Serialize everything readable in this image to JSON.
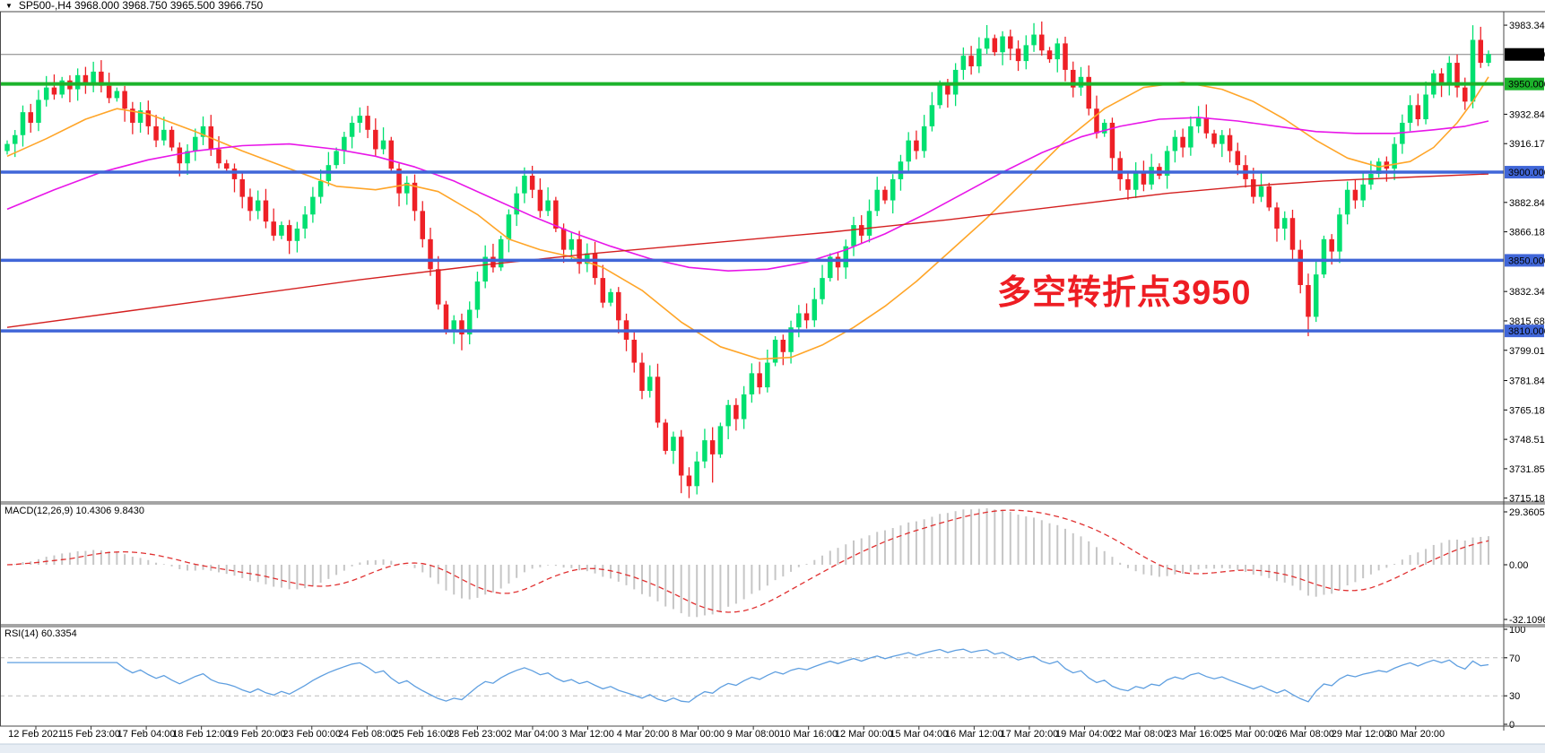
{
  "window_title": "SP500-,H4  3968.000 3968.750 3965.500 3966.750",
  "icons": {
    "symbol_dropdown": "▼"
  },
  "colors": {
    "bull": "#00e070",
    "bear": "#ee2026",
    "wick_bull": "#00c862",
    "wick_bear": "#d81a20",
    "ma_fast": "#ffa528",
    "ma_medium": "#e816e8",
    "ma_slow": "#d42020",
    "level_green": "#1cb32b",
    "level_blue": "#4066d8",
    "current_price_line": "#808080",
    "current_badge_bg": "#000000",
    "badge_text": "#ffffff",
    "macd_histogram": "#c6c6c6",
    "macd_signal": "#e03030",
    "rsi_line": "#5f9fe0",
    "rsi_level_dash": "#bbbbbb",
    "border": "#4a4a4a",
    "bottom_strip": "#e7edf4",
    "annotation_red": "#ee1d23"
  },
  "chart_data": {
    "type": "candlestick",
    "symbol": "SP500-",
    "timeframe": "H4",
    "ohlc_display": {
      "open": "3968.000",
      "high": "3968.750",
      "low": "3965.500",
      "close": "3966.750"
    },
    "y_range": [
      3713,
      3991
    ],
    "price_axis_ticks": [
      {
        "label": "3983.340",
        "value": 3983.34
      },
      {
        "label": "3932.840",
        "value": 3932.84
      },
      {
        "label": "3916.175",
        "value": 3916.175
      },
      {
        "label": "3882.845",
        "value": 3882.845
      },
      {
        "label": "3866.180",
        "value": 3866.18
      },
      {
        "label": "3832.345",
        "value": 3832.345
      },
      {
        "label": "3815.680",
        "value": 3815.68
      },
      {
        "label": "3799.015",
        "value": 3799.015
      },
      {
        "label": "3781.845",
        "value": 3781.845
      },
      {
        "label": "3765.180",
        "value": 3765.18
      },
      {
        "label": "3748.515",
        "value": 3748.515
      },
      {
        "label": "3731.850",
        "value": 3731.85
      },
      {
        "label": "3715.185",
        "value": 3715.185
      }
    ],
    "current_price": {
      "label": "3966.750",
      "value": 3966.75
    },
    "levels": [
      {
        "label": "3950.000",
        "value": 3950.0,
        "color_key": "level_green",
        "width": 4
      },
      {
        "label": "3900.000",
        "value": 3900.0,
        "color_key": "level_blue",
        "width": 3.5
      },
      {
        "label": "3850.000",
        "value": 3850.0,
        "color_key": "level_blue",
        "width": 3.5
      },
      {
        "label": "3810.000",
        "value": 3810.0,
        "color_key": "level_blue",
        "width": 3.5
      }
    ],
    "annotation": {
      "text": "多空转折点3950",
      "color": "#ee1d23"
    },
    "time_labels": [
      "12 Feb 2021",
      "15 Feb 23:00",
      "17 Feb 04:00",
      "18 Feb 12:00",
      "19 Feb 20:00",
      "23 Feb 00:00",
      "24 Feb 08:00",
      "25 Feb 16:00",
      "28 Feb 23:00",
      "2 Mar 04:00",
      "3 Mar 12:00",
      "4 Mar 20:00",
      "8 Mar 00:00",
      "9 Mar 08:00",
      "10 Mar 16:00",
      "12 Mar 00:00",
      "15 Mar 04:00",
      "16 Mar 12:00",
      "17 Mar 20:00",
      "19 Mar 04:00",
      "22 Mar 08:00",
      "23 Mar 16:00",
      "25 Mar 00:00",
      "26 Mar 08:00",
      "29 Mar 12:00",
      "30 Mar 20:00"
    ],
    "candles": {
      "first_open": 3912,
      "closes": [
        3916,
        3921,
        3934,
        3928,
        3941,
        3948,
        3944,
        3952,
        3947,
        3955,
        3950,
        3957,
        3949,
        3942,
        3946,
        3936,
        3928,
        3935,
        3926,
        3918,
        3924,
        3914,
        3905,
        3912,
        3920,
        3926,
        3913,
        3905,
        3902,
        3896,
        3886,
        3878,
        3884,
        3872,
        3864,
        3870,
        3861,
        3868,
        3876,
        3886,
        3895,
        3904,
        3912,
        3920,
        3928,
        3932,
        3924,
        3913,
        3918,
        3902,
        3888,
        3894,
        3878,
        3862,
        3845,
        3825,
        3810,
        3816,
        3808,
        3822,
        3838,
        3852,
        3846,
        3862,
        3876,
        3888,
        3898,
        3890,
        3878,
        3884,
        3868,
        3856,
        3862,
        3848,
        3854,
        3840,
        3826,
        3832,
        3816,
        3805,
        3792,
        3776,
        3784,
        3758,
        3742,
        3750,
        3728,
        3722,
        3736,
        3748,
        3740,
        3756,
        3768,
        3760,
        3774,
        3786,
        3778,
        3792,
        3805,
        3798,
        3812,
        3820,
        3816,
        3828,
        3840,
        3852,
        3846,
        3858,
        3870,
        3864,
        3878,
        3890,
        3884,
        3896,
        3906,
        3918,
        3912,
        3926,
        3938,
        3950,
        3944,
        3958,
        3966,
        3960,
        3970,
        3976,
        3968,
        3977,
        3970,
        3963,
        3972,
        3978,
        3969,
        3964,
        3973,
        3958,
        3948,
        3954,
        3936,
        3922,
        3928,
        3908,
        3896,
        3890,
        3900,
        3893,
        3903,
        3898,
        3912,
        3920,
        3914,
        3926,
        3931,
        3922,
        3916,
        3921,
        3912,
        3904,
        3896,
        3886,
        3892,
        3880,
        3868,
        3874,
        3856,
        3836,
        3818,
        3842,
        3862,
        3855,
        3876,
        3890,
        3884,
        3893,
        3899,
        3906,
        3902,
        3916,
        3928,
        3938,
        3930,
        3944,
        3956,
        3950,
        3962,
        3948,
        3940,
        3975,
        3962,
        3967
      ],
      "overrides": {
        "58": {
          "low": 3799
        },
        "86": {
          "low": 3718
        },
        "87": {
          "low": 3715.2
        },
        "90": {
          "low": 3724
        },
        "166": {
          "low": 3807
        },
        "187": {
          "high": 3983.3
        }
      }
    },
    "moving_averages": [
      {
        "name": "ma-fast-orange",
        "color_key": "ma_fast",
        "width": 1.6,
        "points": [
          [
            0,
            3909
          ],
          [
            5,
            3919
          ],
          [
            10,
            3930
          ],
          [
            14,
            3936
          ],
          [
            18,
            3933
          ],
          [
            24,
            3923
          ],
          [
            30,
            3912
          ],
          [
            36,
            3902
          ],
          [
            42,
            3892
          ],
          [
            47,
            3890
          ],
          [
            51,
            3893
          ],
          [
            55,
            3889
          ],
          [
            60,
            3876
          ],
          [
            64,
            3862
          ],
          [
            68,
            3856
          ],
          [
            72,
            3852
          ],
          [
            76,
            3846
          ],
          [
            81,
            3833
          ],
          [
            86,
            3815
          ],
          [
            91,
            3801
          ],
          [
            96,
            3794
          ],
          [
            100,
            3795
          ],
          [
            104,
            3802
          ],
          [
            108,
            3812
          ],
          [
            112,
            3824
          ],
          [
            116,
            3838
          ],
          [
            120,
            3854
          ],
          [
            125,
            3874
          ],
          [
            130,
            3896
          ],
          [
            135,
            3918
          ],
          [
            140,
            3936
          ],
          [
            145,
            3948
          ],
          [
            150,
            3951
          ],
          [
            155,
            3947
          ],
          [
            159,
            3940
          ],
          [
            163,
            3930
          ],
          [
            167,
            3918
          ],
          [
            171,
            3908
          ],
          [
            175,
            3903
          ],
          [
            179,
            3906
          ],
          [
            182,
            3914
          ],
          [
            185,
            3928
          ],
          [
            187,
            3940
          ],
          [
            189,
            3954
          ]
        ]
      },
      {
        "name": "ma-medium-magenta",
        "color_key": "ma_medium",
        "width": 1.6,
        "points": [
          [
            0,
            3879
          ],
          [
            6,
            3890
          ],
          [
            12,
            3900
          ],
          [
            18,
            3907
          ],
          [
            24,
            3912
          ],
          [
            30,
            3915
          ],
          [
            36,
            3916
          ],
          [
            42,
            3913
          ],
          [
            47,
            3909
          ],
          [
            52,
            3903
          ],
          [
            57,
            3895
          ],
          [
            62,
            3885
          ],
          [
            67,
            3875
          ],
          [
            72,
            3866
          ],
          [
            77,
            3858
          ],
          [
            82,
            3851
          ],
          [
            87,
            3846
          ],
          [
            92,
            3844
          ],
          [
            97,
            3845
          ],
          [
            102,
            3849
          ],
          [
            107,
            3856
          ],
          [
            112,
            3865
          ],
          [
            117,
            3876
          ],
          [
            122,
            3888
          ],
          [
            127,
            3900
          ],
          [
            132,
            3911
          ],
          [
            137,
            3920
          ],
          [
            142,
            3926
          ],
          [
            147,
            3930
          ],
          [
            152,
            3931
          ],
          [
            157,
            3929
          ],
          [
            162,
            3926
          ],
          [
            167,
            3923
          ],
          [
            172,
            3922
          ],
          [
            177,
            3922
          ],
          [
            182,
            3924
          ],
          [
            186,
            3926
          ],
          [
            189,
            3929
          ]
        ]
      },
      {
        "name": "ma-slow-red",
        "color_key": "ma_slow",
        "width": 1.4,
        "points": [
          [
            0,
            3812
          ],
          [
            15,
            3821
          ],
          [
            30,
            3830
          ],
          [
            45,
            3839
          ],
          [
            60,
            3847
          ],
          [
            75,
            3854
          ],
          [
            90,
            3860
          ],
          [
            105,
            3866
          ],
          [
            120,
            3873
          ],
          [
            135,
            3881
          ],
          [
            148,
            3888
          ],
          [
            158,
            3892
          ],
          [
            168,
            3895
          ],
          [
            178,
            3897
          ],
          [
            189,
            3899
          ]
        ]
      }
    ],
    "panels": {
      "macd": {
        "label": "MACD(12,26,9) 10.4306 9.8430",
        "params": "12,26,9",
        "main_value": "10.4306",
        "signal_value": "9.8430",
        "axis_labels": [
          {
            "label": "29.3605",
            "value": 29.3605
          },
          {
            "label": "0.00",
            "value": 0
          },
          {
            "label": "-32.1096",
            "value": -32.1096
          }
        ]
      },
      "rsi": {
        "label": "RSI(14) 60.3354",
        "period": "14",
        "value": "60.3354",
        "axis_labels": [
          {
            "label": "100",
            "value": 100
          },
          {
            "label": "70",
            "value": 70
          },
          {
            "label": "30",
            "value": 30
          },
          {
            "label": "0",
            "value": 0
          }
        ],
        "dashed_levels": [
          70,
          30
        ]
      }
    }
  }
}
